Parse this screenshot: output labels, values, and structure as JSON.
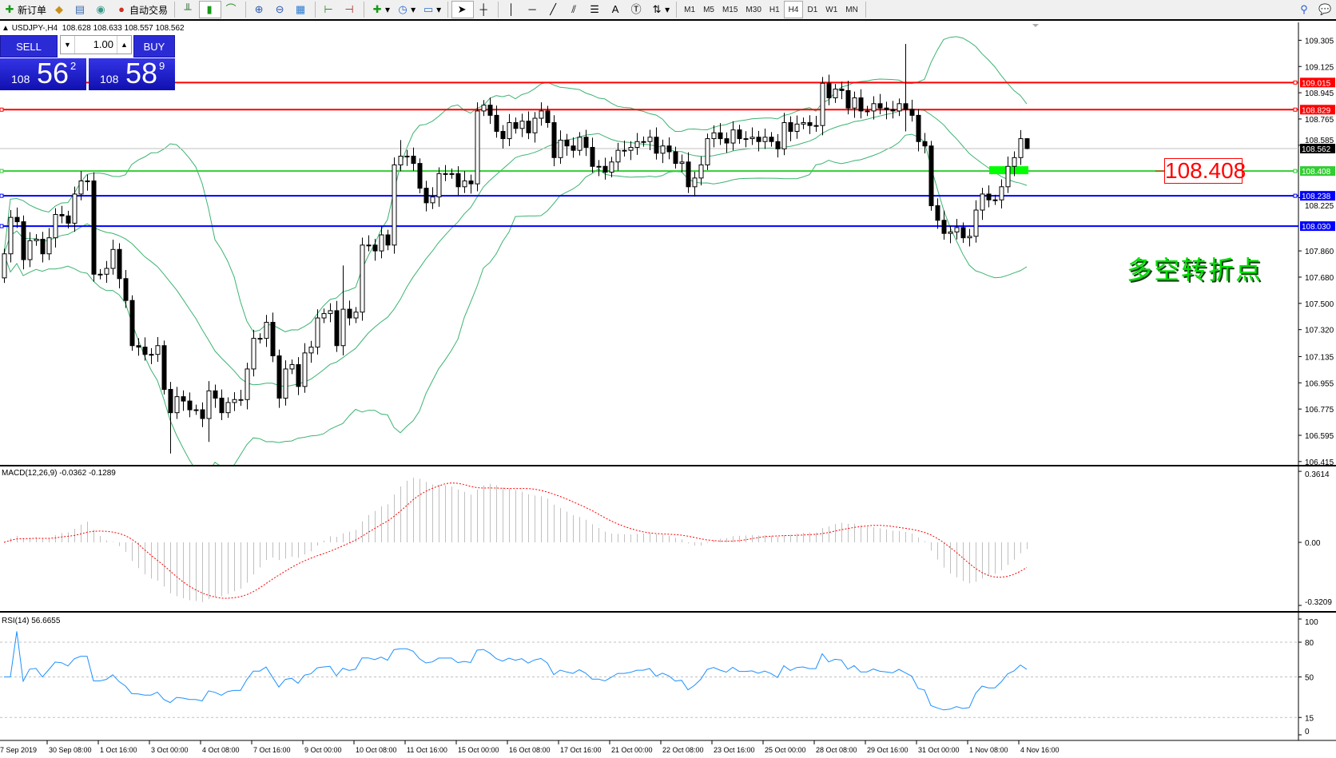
{
  "toolbar": {
    "new_order": "新订单",
    "auto_trading": "自动交易",
    "timeframes": [
      "M1",
      "M5",
      "M15",
      "M30",
      "H1",
      "H4",
      "D1",
      "W1",
      "MN"
    ],
    "active_timeframe": "H4"
  },
  "header": {
    "symbol": "USDJPY-,H4",
    "ohlc": "108.628 108.633 108.557 108.562"
  },
  "trade_panel": {
    "sell_label": "SELL",
    "buy_label": "BUY",
    "lot": "1.00",
    "sell_small": "108",
    "sell_big": "56",
    "sell_pip": "2",
    "buy_small": "108",
    "buy_big": "58",
    "buy_pip": "9"
  },
  "annotation": {
    "price_label": "108.408",
    "text": "多空转折点"
  },
  "price_axis": {
    "ticks": [
      "109.305",
      "109.125",
      "108.945",
      "108.765",
      "108.585",
      "108.225",
      "107.860",
      "107.680",
      "107.500",
      "107.320",
      "107.135",
      "106.955",
      "106.775",
      "106.595",
      "106.415"
    ],
    "lines": [
      {
        "price": "109.015",
        "color": "#ff0000"
      },
      {
        "price": "108.829",
        "color": "#ff0000"
      },
      {
        "price": "108.408",
        "color": "#32cd32"
      },
      {
        "price": "108.238",
        "color": "#0000ff"
      },
      {
        "price": "108.030",
        "color": "#0000ff"
      }
    ],
    "bid": {
      "price": "108.562",
      "color": "#000000"
    }
  },
  "macd": {
    "label": "MACD(12,26,9) -0.0362 -0.1289",
    "ticks": [
      "0.3614",
      "0.00",
      "-0.3209"
    ],
    "signal_color": "#ff0000",
    "hist_color": "#c0c0c0"
  },
  "rsi": {
    "label": "RSI(14) 56.6655",
    "ticks": [
      "100",
      "80",
      "50",
      "15",
      "0"
    ],
    "levels": [
      80,
      50,
      15
    ],
    "color": "#1e90ff"
  },
  "time_axis": [
    "7 Sep 2019",
    "30 Sep 08:00",
    "1 Oct 16:00",
    "3 Oct 00:00",
    "4 Oct 08:00",
    "7 Oct 16:00",
    "9 Oct 00:00",
    "10 Oct 08:00",
    "11 Oct 16:00",
    "15 Oct 00:00",
    "16 Oct 08:00",
    "17 Oct 16:00",
    "21 Oct 00:00",
    "22 Oct 08:00",
    "23 Oct 16:00",
    "25 Oct 00:00",
    "28 Oct 08:00",
    "29 Oct 16:00",
    "31 Oct 00:00",
    "1 Nov 08:00",
    "4 Nov 16:00"
  ],
  "chart_data": {
    "type": "candlestick",
    "symbol": "USDJPY",
    "timeframe": "H4",
    "ylim": [
      106.415,
      109.305
    ],
    "first_open": 107.675,
    "close": [
      107.84,
      108.09,
      108.06,
      107.8,
      107.93,
      107.94,
      107.84,
      107.95,
      108.11,
      108.1,
      108.05,
      108.25,
      108.34,
      108.34,
      107.7,
      107.7,
      107.74,
      107.87,
      107.67,
      107.52,
      107.21,
      107.2,
      107.15,
      107.15,
      107.21,
      106.91,
      106.75,
      106.86,
      106.83,
      106.77,
      106.77,
      106.71,
      106.9,
      106.85,
      106.75,
      106.82,
      106.84,
      106.84,
      107.05,
      107.26,
      107.26,
      107.37,
      107.14,
      106.85,
      107.05,
      107.08,
      106.93,
      107.16,
      107.2,
      107.4,
      107.43,
      107.45,
      107.21,
      107.46,
      107.4,
      107.44,
      107.9,
      107.9,
      107.86,
      107.97,
      107.9,
      108.45,
      108.51,
      108.51,
      108.46,
      108.29,
      108.19,
      108.23,
      108.39,
      108.39,
      108.39,
      108.3,
      108.34,
      108.32,
      108.82,
      108.86,
      108.79,
      108.68,
      108.63,
      108.74,
      108.7,
      108.75,
      108.67,
      108.77,
      108.82,
      108.74,
      108.5,
      108.62,
      108.58,
      108.55,
      108.64,
      108.57,
      108.44,
      108.44,
      108.4,
      108.47,
      108.55,
      108.55,
      108.57,
      108.61,
      108.61,
      108.64,
      108.53,
      108.58,
      108.54,
      108.46,
      108.47,
      108.3,
      108.36,
      108.45,
      108.63,
      108.67,
      108.63,
      108.6,
      108.69,
      108.63,
      108.63,
      108.64,
      108.61,
      108.64,
      108.61,
      108.56,
      108.74,
      108.68,
      108.73,
      108.74,
      108.72,
      108.72,
      109.01,
      108.91,
      108.97,
      108.96,
      108.84,
      108.91,
      108.82,
      108.82,
      108.87,
      108.84,
      108.83,
      108.82,
      108.87,
      108.83,
      108.79,
      108.61,
      108.58,
      108.17,
      108.07,
      107.98,
      107.99,
      108.02,
      107.95,
      107.96,
      108.14,
      108.25,
      108.21,
      108.21,
      108.3,
      108.44,
      108.5,
      108.63,
      108.562
    ],
    "wick_extremes": [
      {
        "bar": 26,
        "low": 106.47
      },
      {
        "bar": 32,
        "low": 106.55
      },
      {
        "bar": 53,
        "high": 107.76
      },
      {
        "bar": 62,
        "high": 108.62
      },
      {
        "bar": 141,
        "high": 109.28,
        "low": 108.68
      },
      {
        "bar": 160,
        "high": 108.633,
        "low": 108.557
      }
    ],
    "indicators": [
      "Bollinger Bands(20,2)",
      "MACD(12,26,9)",
      "RSI(14)"
    ],
    "band_color": "#3cb371",
    "highlight_zone": {
      "price": 108.408,
      "color": "#00ff00"
    }
  }
}
